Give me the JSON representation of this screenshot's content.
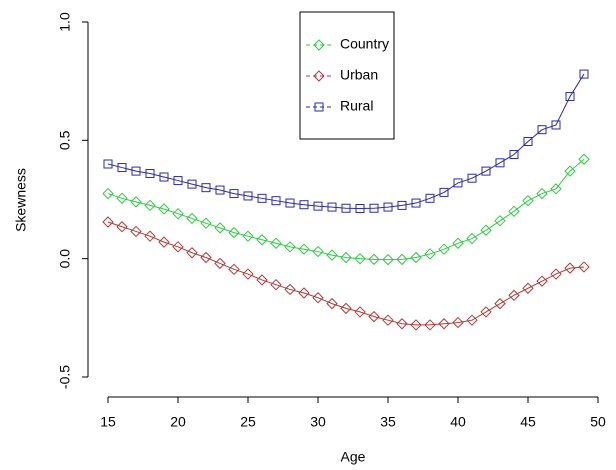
{
  "chart_data": {
    "type": "line",
    "xlabel": "Age",
    "ylabel": "Skewness",
    "x": [
      15,
      16,
      17,
      18,
      19,
      20,
      21,
      22,
      23,
      24,
      25,
      26,
      27,
      28,
      29,
      30,
      31,
      32,
      33,
      34,
      35,
      36,
      37,
      38,
      39,
      40,
      41,
      42,
      43,
      44,
      45,
      46,
      47,
      48,
      49
    ],
    "series": [
      {
        "name": "Country",
        "color": "#2ecc40",
        "marker": "diamond",
        "values": [
          0.275,
          0.255,
          0.24,
          0.225,
          0.21,
          0.19,
          0.17,
          0.15,
          0.13,
          0.11,
          0.095,
          0.08,
          0.065,
          0.05,
          0.04,
          0.03,
          0.015,
          0.005,
          0.0,
          -0.003,
          -0.004,
          -0.003,
          0.005,
          0.02,
          0.04,
          0.065,
          0.085,
          0.12,
          0.16,
          0.2,
          0.245,
          0.275,
          0.295,
          0.37,
          0.42
        ]
      },
      {
        "name": "Urban",
        "color": "#b03a3a",
        "marker": "diamond",
        "values": [
          0.155,
          0.135,
          0.115,
          0.095,
          0.07,
          0.05,
          0.025,
          0.005,
          -0.02,
          -0.045,
          -0.065,
          -0.09,
          -0.11,
          -0.13,
          -0.145,
          -0.165,
          -0.19,
          -0.21,
          -0.225,
          -0.245,
          -0.26,
          -0.275,
          -0.28,
          -0.28,
          -0.275,
          -0.27,
          -0.26,
          -0.225,
          -0.19,
          -0.155,
          -0.125,
          -0.095,
          -0.065,
          -0.04,
          -0.035
        ]
      },
      {
        "name": "Rural",
        "color": "#2a2ab0",
        "marker": "square",
        "values": [
          0.4,
          0.385,
          0.37,
          0.36,
          0.345,
          0.33,
          0.315,
          0.3,
          0.29,
          0.275,
          0.265,
          0.255,
          0.245,
          0.235,
          0.228,
          0.222,
          0.218,
          0.213,
          0.212,
          0.213,
          0.218,
          0.225,
          0.235,
          0.255,
          0.28,
          0.32,
          0.34,
          0.37,
          0.405,
          0.44,
          0.495,
          0.545,
          0.565,
          0.685,
          0.78
        ]
      }
    ],
    "xlim": [
      15,
      50
    ],
    "xticks": [
      15,
      20,
      25,
      30,
      35,
      40,
      45,
      50
    ],
    "ylim": [
      -0.5,
      1
    ],
    "yticks": [
      -0.5,
      {
        "value": 0,
        "label": "0.0"
      },
      0.5,
      {
        "value": 1,
        "label": "1.0"
      }
    ],
    "legend": "top-center"
  }
}
